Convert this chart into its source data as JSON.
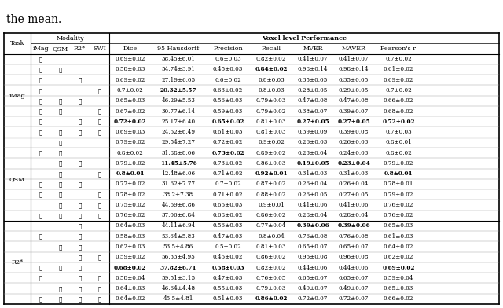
{
  "title_text": "the mean.",
  "tasks": [
    "iMag",
    "QSM",
    "R2*"
  ],
  "task_rows": [
    8,
    8,
    8
  ],
  "checkmarks": [
    [
      [
        1,
        0,
        0,
        0
      ],
      [
        1,
        1,
        0,
        0
      ],
      [
        1,
        0,
        1,
        0
      ],
      [
        1,
        0,
        0,
        1
      ],
      [
        1,
        1,
        1,
        0
      ],
      [
        1,
        1,
        0,
        1
      ],
      [
        1,
        0,
        1,
        1
      ],
      [
        1,
        1,
        1,
        1
      ]
    ],
    [
      [
        0,
        1,
        0,
        0
      ],
      [
        1,
        1,
        0,
        0
      ],
      [
        0,
        1,
        1,
        0
      ],
      [
        0,
        1,
        0,
        1
      ],
      [
        1,
        1,
        1,
        0
      ],
      [
        1,
        1,
        0,
        1
      ],
      [
        0,
        1,
        1,
        1
      ],
      [
        1,
        1,
        1,
        1
      ]
    ],
    [
      [
        0,
        0,
        1,
        0
      ],
      [
        1,
        0,
        1,
        0
      ],
      [
        0,
        1,
        1,
        0
      ],
      [
        0,
        0,
        1,
        1
      ],
      [
        1,
        1,
        1,
        0
      ],
      [
        1,
        0,
        1,
        1
      ],
      [
        0,
        1,
        1,
        1
      ],
      [
        1,
        1,
        1,
        1
      ]
    ]
  ],
  "data": [
    [
      [
        "0.69±0.02",
        "38.45±6.01",
        "0.6±0.03",
        "0.82±0.02",
        "0.41±0.07",
        "0.41±0.07",
        "0.7±0.02"
      ],
      [
        "0.58±0.03",
        "54.74±3.91",
        "0.45±0.03",
        "BF0.84±0.02",
        "0.98±0.14",
        "0.98±0.14",
        "0.61±0.02"
      ],
      [
        "0.69±0.02",
        "27.19±6.05",
        "0.6±0.02",
        "0.8±0.03",
        "0.35±0.05",
        "0.35±0.05",
        "0.69±0.02"
      ],
      [
        "0.7±0.02",
        "BF20.32±5.57",
        "0.63±0.02",
        "0.8±0.03",
        "0.28±0.05",
        "0.29±0.05",
        "0.7±0.02"
      ],
      [
        "0.65±0.03",
        "46.29±5.53",
        "0.56±0.03",
        "0.79±0.03",
        "0.47±0.08",
        "0.47±0.08",
        "0.66±0.02"
      ],
      [
        "0.67±0.02",
        "30.77±6.14",
        "0.59±0.03",
        "0.79±0.02",
        "0.38±0.07",
        "0.39±0.07",
        "0.68±0.02"
      ],
      [
        "BF0.72±0.02",
        "25.17±6.40",
        "BF0.65±0.02",
        "0.81±0.03",
        "BF0.27±0.05",
        "BF0.27±0.05",
        "BF0.72±0.02"
      ],
      [
        "0.69±0.03",
        "24.52±6.49",
        "0.61±0.03",
        "0.81±0.03",
        "0.39±0.09",
        "0.39±0.08",
        "0.7±0.03"
      ]
    ],
    [
      [
        "0.79±0.02",
        "29.54±7.27",
        "0.72±0.02",
        "0.9±0.02",
        "0.26±0.03",
        "0.26±0.03",
        "0.8±0.01"
      ],
      [
        "0.8±0.02",
        "31.88±8.06",
        "BF0.73±0.02",
        "0.89±0.02",
        "0.23±0.04",
        "0.24±0.03",
        "0.8±0.02"
      ],
      [
        "0.79±0.02",
        "BF11.45±5.76",
        "0.73±0.02",
        "0.86±0.03",
        "BF0.19±0.05",
        "BF0.23±0.04",
        "0.79±0.02"
      ],
      [
        "BF0.8±0.01",
        "12.48±6.06",
        "0.71±0.02",
        "BF0.92±0.01",
        "0.31±0.03",
        "0.31±0.03",
        "BF0.8±0.01"
      ],
      [
        "0.77±0.02",
        "31.62±7.77",
        "0.7±0.02",
        "0.87±0.02",
        "0.26±0.04",
        "0.26±0.04",
        "0.78±0.01"
      ],
      [
        "0.78±0.02",
        "38.2±7.38",
        "0.71±0.02",
        "0.88±0.02",
        "0.26±0.05",
        "0.27±0.05",
        "0.79±0.02"
      ],
      [
        "0.75±0.02",
        "44.69±6.86",
        "0.65±0.03",
        "0.9±0.01",
        "0.41±0.06",
        "0.41±0.06",
        "0.76±0.02"
      ],
      [
        "0.76±0.02",
        "37.06±6.84",
        "0.68±0.02",
        "0.86±0.02",
        "0.28±0.04",
        "0.28±0.04",
        "0.76±0.02"
      ]
    ],
    [
      [
        "0.64±0.03",
        "44.11±6.94",
        "0.56±0.03",
        "0.77±0.04",
        "BF0.39±0.06",
        "BF0.39±0.06",
        "0.65±0.03"
      ],
      [
        "0.58±0.03",
        "53.64±5.83",
        "0.47±0.03",
        "0.8±0.04",
        "0.76±0.08",
        "0.76±0.08",
        "0.61±0.03"
      ],
      [
        "0.62±0.03",
        "53.5±4.86",
        "0.5±0.02",
        "0.81±0.03",
        "0.65±0.07",
        "0.65±0.07",
        "0.64±0.02"
      ],
      [
        "0.59±0.02",
        "56.33±4.95",
        "0.45±0.02",
        "0.86±0.02",
        "0.96±0.08",
        "0.96±0.08",
        "0.62±0.02"
      ],
      [
        "BF0.68±0.02",
        "BF37.82±6.71",
        "BF0.58±0.03",
        "0.82±0.02",
        "0.44±0.06",
        "0.44±0.06",
        "BF0.69±0.02"
      ],
      [
        "0.58±0.04",
        "59.51±3.15",
        "0.47±0.03",
        "0.76±0.05",
        "0.65±0.07",
        "0.65±0.07",
        "0.59±0.04"
      ],
      [
        "0.64±0.03",
        "46.64±4.48",
        "0.55±0.03",
        "0.79±0.03",
        "0.49±0.07",
        "0.49±0.07",
        "0.65±0.03"
      ],
      [
        "0.64±0.02",
        "45.5±4.81",
        "0.51±0.03",
        "BF0.86±0.02",
        "0.72±0.07",
        "0.72±0.07",
        "0.66±0.02"
      ]
    ]
  ],
  "sub_headers": [
    "iMag",
    "QSM",
    "R2*",
    "SWI",
    "Dice",
    "95 Hausdorff",
    "Precision",
    "Recall",
    "MVER",
    "MAVER",
    "Pearson's r"
  ],
  "fig_width": 6.4,
  "fig_height": 3.92,
  "font_size": 5.2,
  "header_font_size": 5.8,
  "title_font_size": 10
}
